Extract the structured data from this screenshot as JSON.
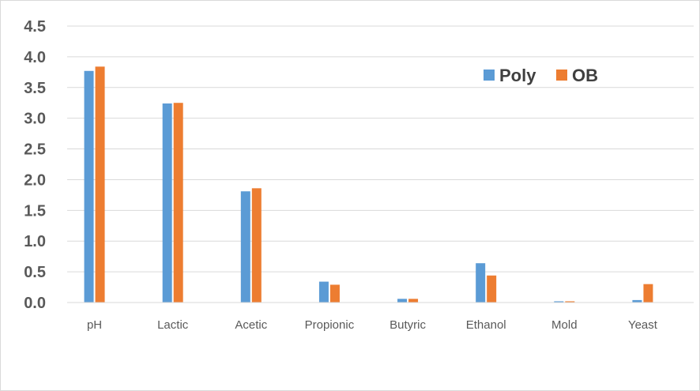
{
  "chart_data": {
    "type": "bar",
    "title": "",
    "xlabel": "",
    "ylabel": "",
    "categories": [
      "pH",
      "Lactic",
      "Acetic",
      "Propionic",
      "Butyric",
      "Ethanol",
      "Mold",
      "Yeast"
    ],
    "series": [
      {
        "name": "Poly",
        "color": "#5b9bd5",
        "values": [
          3.77,
          3.24,
          1.81,
          0.34,
          0.06,
          0.64,
          0.02,
          0.04
        ]
      },
      {
        "name": "OB",
        "color": "#ed7d31",
        "values": [
          3.84,
          3.25,
          1.86,
          0.29,
          0.06,
          0.44,
          0.02,
          0.3
        ]
      }
    ],
    "ylim": [
      0,
      4.5
    ],
    "yticks": [
      "0.0",
      "0.5",
      "1.0",
      "1.5",
      "2.0",
      "2.5",
      "3.0",
      "3.5",
      "4.0",
      "4.5"
    ],
    "grid": true,
    "legend_position": "top-right"
  }
}
